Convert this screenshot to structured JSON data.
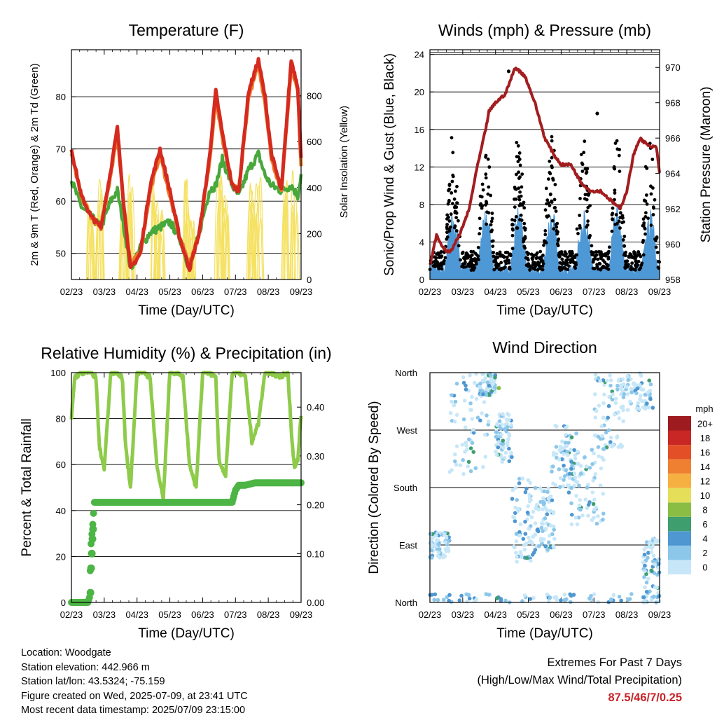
{
  "chart_data": [
    {
      "type": "line",
      "title": "Temperature (F)",
      "xlabel": "Time (Day/UTC)",
      "ylabel": "2m & 9m T (Red, Orange) & 2m Td (Green)",
      "ylabel_right": "Solar Insolation (Yellow)",
      "x_ticks": [
        "02/23",
        "03/23",
        "04/23",
        "05/23",
        "06/23",
        "07/23",
        "08/23",
        "09/23"
      ],
      "ylim": [
        45,
        89
      ],
      "y_ticks": [
        50,
        60,
        70,
        80
      ],
      "ylim_right": [
        0,
        1000
      ],
      "y_ticks_right": [
        0,
        200,
        400,
        600,
        800
      ],
      "grid": true,
      "series": [
        {
          "name": "2m T",
          "color": "#d42a1f",
          "x_day": [
            0,
            0.3,
            0.6,
            0.9,
            1.2,
            1.4,
            1.6,
            1.8,
            2.1,
            2.4,
            2.7,
            3.0,
            3.3,
            3.6,
            3.9,
            4.2,
            4.4,
            4.6,
            4.9,
            5.1,
            5.4,
            5.7,
            5.9,
            6.1,
            6.4,
            6.7,
            6.9,
            7.0
          ],
          "values": [
            70,
            61,
            57,
            55,
            66,
            74,
            59,
            47,
            50,
            63,
            70,
            62,
            53,
            47,
            54,
            68,
            81,
            73,
            63,
            62,
            81,
            87,
            80,
            69,
            62,
            87,
            82,
            68
          ]
        },
        {
          "name": "9m T",
          "color": "#f07d2a",
          "x_day": [
            0,
            0.3,
            0.6,
            0.9,
            1.2,
            1.4,
            1.6,
            1.8,
            2.1,
            2.4,
            2.7,
            3.0,
            3.3,
            3.6,
            3.9,
            4.2,
            4.4,
            4.6,
            4.9,
            5.1,
            5.4,
            5.7,
            5.9,
            6.1,
            6.4,
            6.7,
            6.9,
            7.0
          ],
          "values": [
            69,
            61,
            57,
            55,
            65,
            73,
            59,
            48,
            50,
            62,
            69,
            61,
            53,
            48,
            54,
            67,
            80,
            72,
            63,
            62,
            80,
            86,
            79,
            68,
            62,
            86,
            81,
            67
          ]
        },
        {
          "name": "2m Td",
          "color": "#48a83c",
          "x_day": [
            0,
            0.3,
            0.6,
            0.9,
            1.2,
            1.4,
            1.6,
            1.8,
            2.1,
            2.4,
            2.7,
            3.0,
            3.3,
            3.6,
            3.9,
            4.2,
            4.4,
            4.6,
            4.9,
            5.1,
            5.4,
            5.7,
            5.9,
            6.1,
            6.4,
            6.7,
            6.9,
            7.0
          ],
          "values": [
            64,
            59,
            57,
            55,
            60,
            62,
            55,
            47,
            51,
            54,
            55,
            56,
            53,
            47,
            54,
            62,
            63,
            68,
            63,
            61,
            66,
            69,
            65,
            63,
            62,
            63,
            61,
            65
          ]
        },
        {
          "name": "Solar Insolation",
          "color": "#f5e163",
          "axis": "right",
          "peaks_day": [
            0.6,
            0.85,
            1.6,
            1.8,
            2.55,
            2.7,
            3.5,
            3.7,
            4.5,
            4.7,
            5.5,
            5.7,
            6.55,
            6.8
          ],
          "peaks_value": [
            640,
            870,
            790,
            920,
            880,
            600,
            870,
            500,
            930,
            700,
            920,
            890,
            850,
            950
          ]
        }
      ]
    },
    {
      "type": "line",
      "title": "Winds (mph) & Pressure (mb)",
      "xlabel": "Time (Day/UTC)",
      "ylabel": "Sonic/Prop Wind & Gust (Blue, Black)",
      "ylabel_right": "Station Pressure (Maroon)",
      "x_ticks": [
        "02/23",
        "03/23",
        "04/23",
        "05/23",
        "06/23",
        "07/23",
        "08/23",
        "09/23"
      ],
      "ylim": [
        0,
        24.5
      ],
      "y_ticks": [
        0,
        4,
        8,
        12,
        16,
        20,
        24
      ],
      "ylim_right": [
        958,
        971
      ],
      "y_ticks_right": [
        958,
        960,
        962,
        964,
        966,
        968,
        970
      ],
      "grid": true,
      "series": [
        {
          "name": "Pressure",
          "color": "#a31d1f",
          "axis": "right",
          "x_day": [
            0,
            0.2,
            0.4,
            0.6,
            0.9,
            1.2,
            1.4,
            1.7,
            1.8,
            2.0,
            2.3,
            2.6,
            2.9,
            3.2,
            3.5,
            3.8,
            4.0,
            4.3,
            4.6,
            4.9,
            5.2,
            5.5,
            5.8,
            6.0,
            6.2,
            6.4,
            6.7,
            6.9,
            7.0
          ],
          "values": [
            958.8,
            960.5,
            959.8,
            959.5,
            960.5,
            962,
            964,
            966.5,
            967.5,
            968,
            968.5,
            970,
            969.5,
            968,
            966,
            965,
            964.5,
            964.5,
            963.5,
            963,
            963,
            962.5,
            962,
            963,
            965,
            966,
            965.5,
            965.5,
            964
          ]
        },
        {
          "name": "Wind",
          "color": "#4f98d6",
          "band": [
            0,
            7
          ]
        },
        {
          "name": "Gust",
          "color": "#000000",
          "max": 22.2
        }
      ]
    },
    {
      "type": "line",
      "title": "Relative Humidity (%) & Precipitation (in)",
      "xlabel": "Time (Day/UTC)",
      "ylabel": "Percent & Total Rainfall",
      "x_ticks": [
        "02/23",
        "03/23",
        "04/23",
        "05/23",
        "06/23",
        "07/23",
        "08/23",
        "09/23"
      ],
      "ylim": [
        0,
        100
      ],
      "y_ticks": [
        0,
        20,
        40,
        60,
        80,
        100
      ],
      "ylim_right": [
        0,
        0.4706
      ],
      "y_ticks_right": [
        "0.00",
        "0.10",
        "0.20",
        "0.30",
        "0.40"
      ],
      "grid": true,
      "series": [
        {
          "name": "Relative Humidity",
          "color": "#8ecb4a",
          "x_day": [
            0,
            0.1,
            0.3,
            0.6,
            0.75,
            0.85,
            1.0,
            1.2,
            1.4,
            1.55,
            1.65,
            1.8,
            2.0,
            2.2,
            2.4,
            2.6,
            2.8,
            3.0,
            3.2,
            3.4,
            3.6,
            3.8,
            4.0,
            4.2,
            4.4,
            4.5,
            4.7,
            4.9,
            5.1,
            5.3,
            5.5,
            5.7,
            5.9,
            6.1,
            6.3,
            6.6,
            6.7,
            6.8,
            6.9,
            7.0
          ],
          "values": [
            80,
            98,
            100,
            100,
            98,
            68,
            58,
            100,
            100,
            98,
            68,
            50,
            100,
            100,
            98,
            60,
            45,
            100,
            100,
            98,
            60,
            50,
            100,
            100,
            98,
            62,
            55,
            100,
            100,
            98,
            70,
            78,
            100,
            100,
            98,
            100,
            75,
            58,
            62,
            82
          ]
        },
        {
          "name": "Total Precipitation",
          "color": "#4cb545",
          "axis": "right",
          "x_day": [
            0,
            0.5,
            0.55,
            0.6,
            0.65,
            0.7,
            1.5,
            4.9,
            5.0,
            5.1,
            5.3,
            5.6,
            7.0
          ],
          "values": [
            0,
            0,
            0.01,
            0.12,
            0.16,
            0.205,
            0.205,
            0.205,
            0.23,
            0.24,
            0.24,
            0.245,
            0.245
          ]
        }
      ]
    },
    {
      "type": "scatter",
      "title": "Wind Direction",
      "xlabel": "Time (Day/UTC)",
      "ylabel": "Direction (Colored By Speed)",
      "x_ticks": [
        "02/23",
        "03/23",
        "04/23",
        "05/23",
        "06/23",
        "07/23",
        "08/23",
        "09/23"
      ],
      "y_ticks": [
        "North",
        "East",
        "South",
        "West",
        "North"
      ],
      "grid": true,
      "colorbar_title": "mph",
      "colorbar_labels": [
        "0",
        "2",
        "4",
        "6",
        "8",
        "10",
        "12",
        "14",
        "16",
        "18",
        "20+"
      ],
      "colorbar_colors": [
        "#c7e7f8",
        "#8cc7ea",
        "#4f97d1",
        "#3e9e6e",
        "#8abd44",
        "#e5de59",
        "#f6b041",
        "#f08031",
        "#e35027",
        "#c82726",
        "#9e1b20"
      ],
      "clusters": [
        {
          "day_start": 0,
          "day_end": 0.6,
          "dir_deg": [
            70,
            110
          ]
        },
        {
          "day_start": 0.6,
          "day_end": 1.8,
          "dir_deg": [
            200,
            360
          ]
        },
        {
          "day_start": 1.5,
          "day_end": 2.0,
          "dir_deg": [
            320,
            360
          ]
        },
        {
          "day_start": 2.0,
          "day_end": 2.5,
          "dir_deg": [
            220,
            300
          ]
        },
        {
          "day_start": 2.5,
          "day_end": 3.2,
          "dir_deg": [
            60,
            200
          ]
        },
        {
          "day_start": 3.2,
          "day_end": 3.8,
          "dir_deg": [
            80,
            180
          ]
        },
        {
          "day_start": 3.7,
          "day_end": 4.5,
          "dir_deg": [
            180,
            280
          ]
        },
        {
          "day_start": 4.2,
          "day_end": 5.3,
          "dir_deg": [
            120,
            240
          ]
        },
        {
          "day_start": 5.0,
          "day_end": 5.9,
          "dir_deg": [
            240,
            360
          ]
        },
        {
          "day_start": 5.8,
          "day_end": 6.8,
          "dir_deg": [
            300,
            360
          ]
        },
        {
          "day_start": 6.5,
          "day_end": 7.0,
          "dir_deg": [
            0,
            100
          ]
        }
      ]
    }
  ],
  "info": {
    "location": "Location: Woodgate",
    "elevation": "Station elevation: 442.966 m",
    "latlon": "Station lat/lon: 43.5324; -75.159",
    "created": "Figure created on Wed, 2025-07-09, at 23:41 UTC",
    "recent": "Most recent data timestamp: 2025/07/09 23:15:00"
  },
  "extremes": {
    "line1": "Extremes For Past 7 Days",
    "line2": "(High/Low/Max Wind/Total Precipitation)",
    "value": "87.5/46/7/0.25"
  }
}
